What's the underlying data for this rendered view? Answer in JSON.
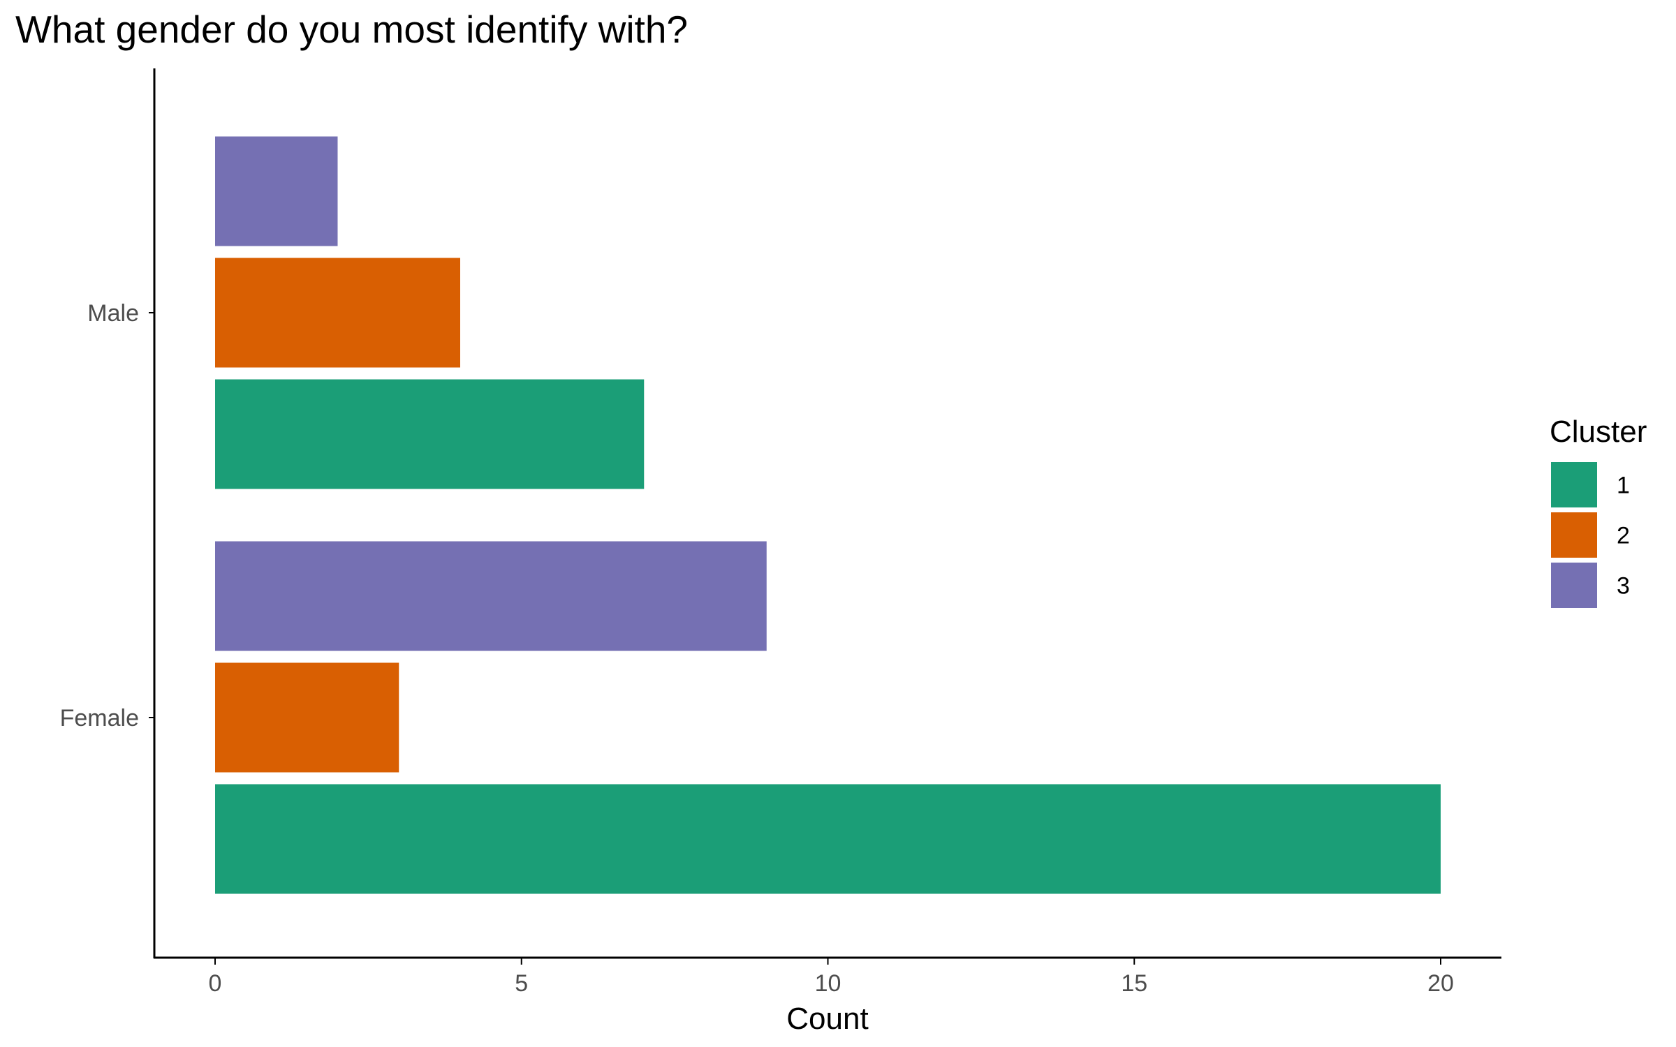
{
  "chart_data": {
    "type": "bar",
    "orientation": "horizontal",
    "title": "What gender do you most identify with?",
    "xlabel": "Count",
    "ylabel": "",
    "categories": [
      "Female",
      "Male"
    ],
    "series": [
      {
        "name": "1",
        "color": "#1b9e77",
        "values": [
          20,
          7
        ]
      },
      {
        "name": "2",
        "color": "#d95f02",
        "values": [
          3,
          4
        ]
      },
      {
        "name": "3",
        "color": "#7570b3",
        "values": [
          9,
          2
        ]
      }
    ],
    "xlim": [
      -1,
      21
    ],
    "xticks": [
      0,
      5,
      10,
      15,
      20
    ],
    "grid": false,
    "legend": {
      "title": "Cluster",
      "position": "right"
    }
  }
}
